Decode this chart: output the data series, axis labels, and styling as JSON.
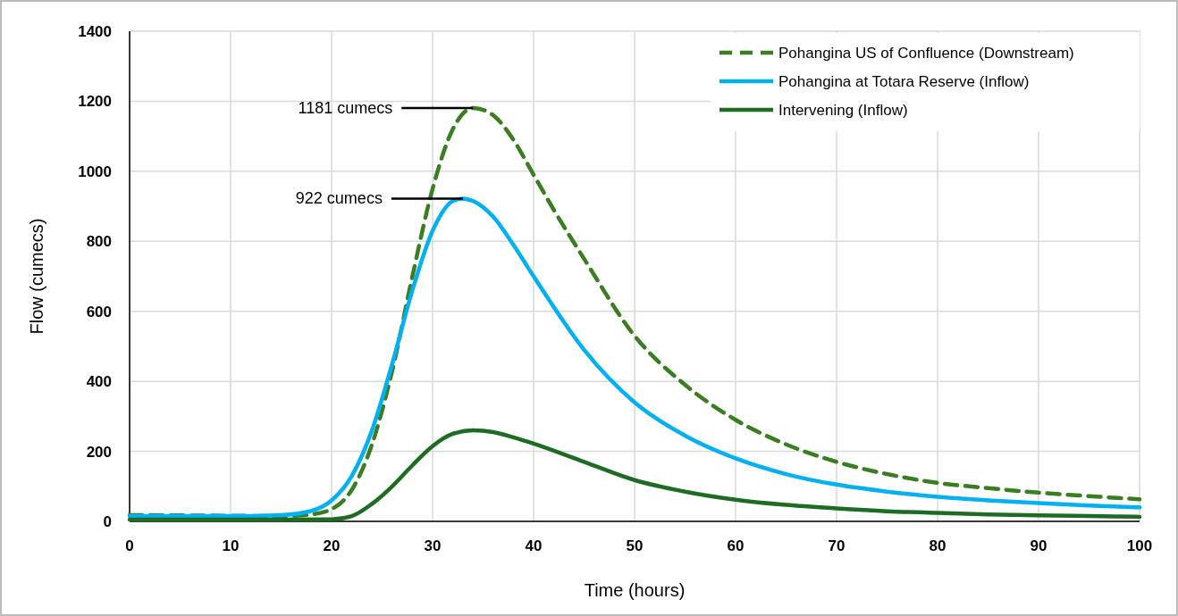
{
  "chart_data": {
    "type": "line",
    "xlabel": "Time (hours)",
    "ylabel": "Flow (cumecs)",
    "xlim": [
      0,
      100
    ],
    "xticks": [
      0,
      10,
      20,
      30,
      40,
      50,
      60,
      70,
      80,
      90,
      100
    ],
    "ylim": [
      0,
      1400
    ],
    "yticks": [
      0,
      200,
      400,
      600,
      800,
      1000,
      1200,
      1400
    ],
    "grid": true,
    "legend": "top right",
    "marker": "none",
    "annotations": [
      {
        "text": "1181 cumecs",
        "x": 34,
        "y": 1181
      },
      {
        "text": "922 cumecs",
        "x": 33,
        "y": 922
      }
    ],
    "series": [
      {
        "name": "Pohangina US of Confluence (Downstream)",
        "color": "#3a7d22",
        "line_style": "dashed",
        "x": [
          0,
          10,
          15,
          18,
          20,
          22,
          24,
          26,
          28,
          30,
          32,
          34,
          36,
          38,
          40,
          42,
          45,
          50,
          55,
          60,
          65,
          70,
          75,
          80,
          85,
          90,
          95,
          100
        ],
        "values": [
          18,
          16,
          15,
          20,
          35,
          90,
          220,
          430,
          700,
          950,
          1120,
          1181,
          1160,
          1090,
          990,
          890,
          750,
          530,
          390,
          290,
          220,
          170,
          135,
          110,
          95,
          82,
          72,
          63
        ]
      },
      {
        "name": "Pohangina at Totara Reserve (Inflow)",
        "color": "#00b0f0",
        "line_style": "solid",
        "x": [
          0,
          10,
          15,
          18,
          20,
          22,
          24,
          26,
          28,
          30,
          32,
          33,
          34,
          36,
          38,
          40,
          45,
          50,
          55,
          60,
          65,
          70,
          75,
          80,
          85,
          90,
          95,
          100
        ],
        "values": [
          15,
          15,
          18,
          30,
          60,
          130,
          260,
          450,
          660,
          830,
          915,
          922,
          915,
          870,
          790,
          700,
          490,
          340,
          245,
          180,
          135,
          105,
          85,
          70,
          60,
          52,
          45,
          40
        ]
      },
      {
        "name": "Intervening (Inflow)",
        "color": "#1e6b24",
        "line_style": "solid",
        "x": [
          0,
          15,
          20,
          22,
          24,
          26,
          28,
          30,
          32,
          34,
          36,
          38,
          40,
          45,
          50,
          55,
          60,
          65,
          70,
          75,
          80,
          85,
          90,
          95,
          100
        ],
        "values": [
          5,
          5,
          6,
          15,
          50,
          100,
          160,
          215,
          250,
          260,
          255,
          240,
          222,
          170,
          118,
          85,
          62,
          47,
          37,
          29,
          24,
          20,
          17,
          15,
          13
        ]
      }
    ]
  }
}
